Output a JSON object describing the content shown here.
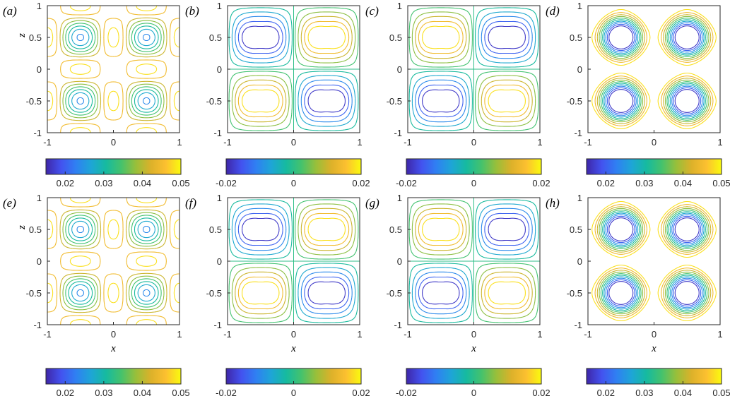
{
  "chart_data": {
    "type": "contour",
    "colormap": [
      "#3e26a8",
      "#4352ef",
      "#2f80f2",
      "#1ea5d7",
      "#16baa0",
      "#44c26d",
      "#99bf3a",
      "#dcb12a",
      "#fcc030",
      "#f9fb0e"
    ],
    "xlim": [
      -1,
      1
    ],
    "ylim": [
      -1,
      1
    ],
    "x_ticks": [
      "-1",
      "0",
      "1"
    ],
    "y_ticks": [
      "1",
      "0.5",
      "0",
      "-0.5",
      "-1"
    ],
    "xlabel": "x",
    "ylabel": "z",
    "panels": [
      {
        "label": "(a)",
        "field": "magnitude",
        "clim": [
          0.015,
          0.05
        ],
        "colorbar_ticks": [
          "0.02",
          "0.03",
          "0.04",
          "0.05"
        ]
      },
      {
        "label": "(b)",
        "field": "signed",
        "sign": 1,
        "clim": [
          -0.02,
          0.02
        ],
        "colorbar_ticks": [
          "-0.02",
          "0",
          "0.02"
        ]
      },
      {
        "label": "(c)",
        "field": "signed",
        "sign": -1,
        "clim": [
          -0.02,
          0.02
        ],
        "colorbar_ticks": [
          "-0.02",
          "0",
          "0.02"
        ]
      },
      {
        "label": "(d)",
        "field": "magnitude_x",
        "clim": [
          0.015,
          0.05
        ],
        "colorbar_ticks": [
          "0.02",
          "0.03",
          "0.04",
          "0.05"
        ]
      },
      {
        "label": "(e)",
        "field": "magnitude",
        "clim": [
          0.015,
          0.05
        ],
        "colorbar_ticks": [
          "0.02",
          "0.03",
          "0.04",
          "0.05"
        ]
      },
      {
        "label": "(f)",
        "field": "signed",
        "sign": 1,
        "clim": [
          -0.02,
          0.02
        ],
        "colorbar_ticks": [
          "-0.02",
          "0",
          "0.02"
        ]
      },
      {
        "label": "(g)",
        "field": "signed",
        "sign": -1,
        "clim": [
          -0.02,
          0.02
        ],
        "colorbar_ticks": [
          "-0.02",
          "0",
          "0.02"
        ]
      },
      {
        "label": "(h)",
        "field": "magnitude_x",
        "clim": [
          0.015,
          0.05
        ],
        "colorbar_ticks": [
          "0.02",
          "0.03",
          "0.04",
          "0.05"
        ]
      }
    ]
  }
}
